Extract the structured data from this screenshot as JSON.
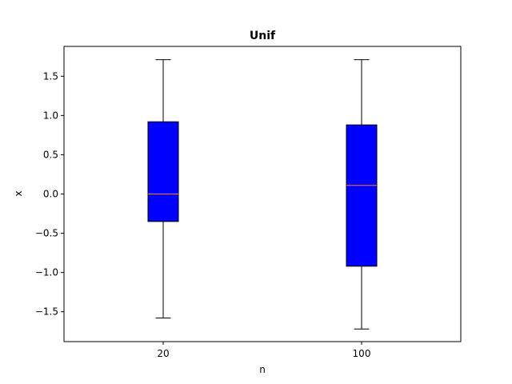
{
  "chart_data": {
    "type": "box",
    "title": "Unif",
    "xlabel": "n",
    "ylabel": "x",
    "categories": [
      "20",
      "100"
    ],
    "ylim": [
      -1.88,
      1.88
    ],
    "yticks": [
      -1.5,
      -1.0,
      -0.5,
      0.0,
      0.5,
      1.0,
      1.5
    ],
    "ytick_labels": [
      "−1.5",
      "−1.0",
      "−0.5",
      "0.0",
      "0.5",
      "1.0",
      "1.5"
    ],
    "grid": false,
    "legend": "none",
    "boxes": [
      {
        "category": "20",
        "whisker_low": -1.58,
        "q1": -0.35,
        "median": 0.0,
        "q3": 0.92,
        "whisker_high": 1.71
      },
      {
        "category": "100",
        "whisker_low": -1.72,
        "q1": -0.92,
        "median": 0.11,
        "q3": 0.88,
        "whisker_high": 1.71
      }
    ],
    "colors": {
      "box_fill": "#0000ff",
      "median": "#ff7f0e",
      "lines": "#000000"
    }
  }
}
